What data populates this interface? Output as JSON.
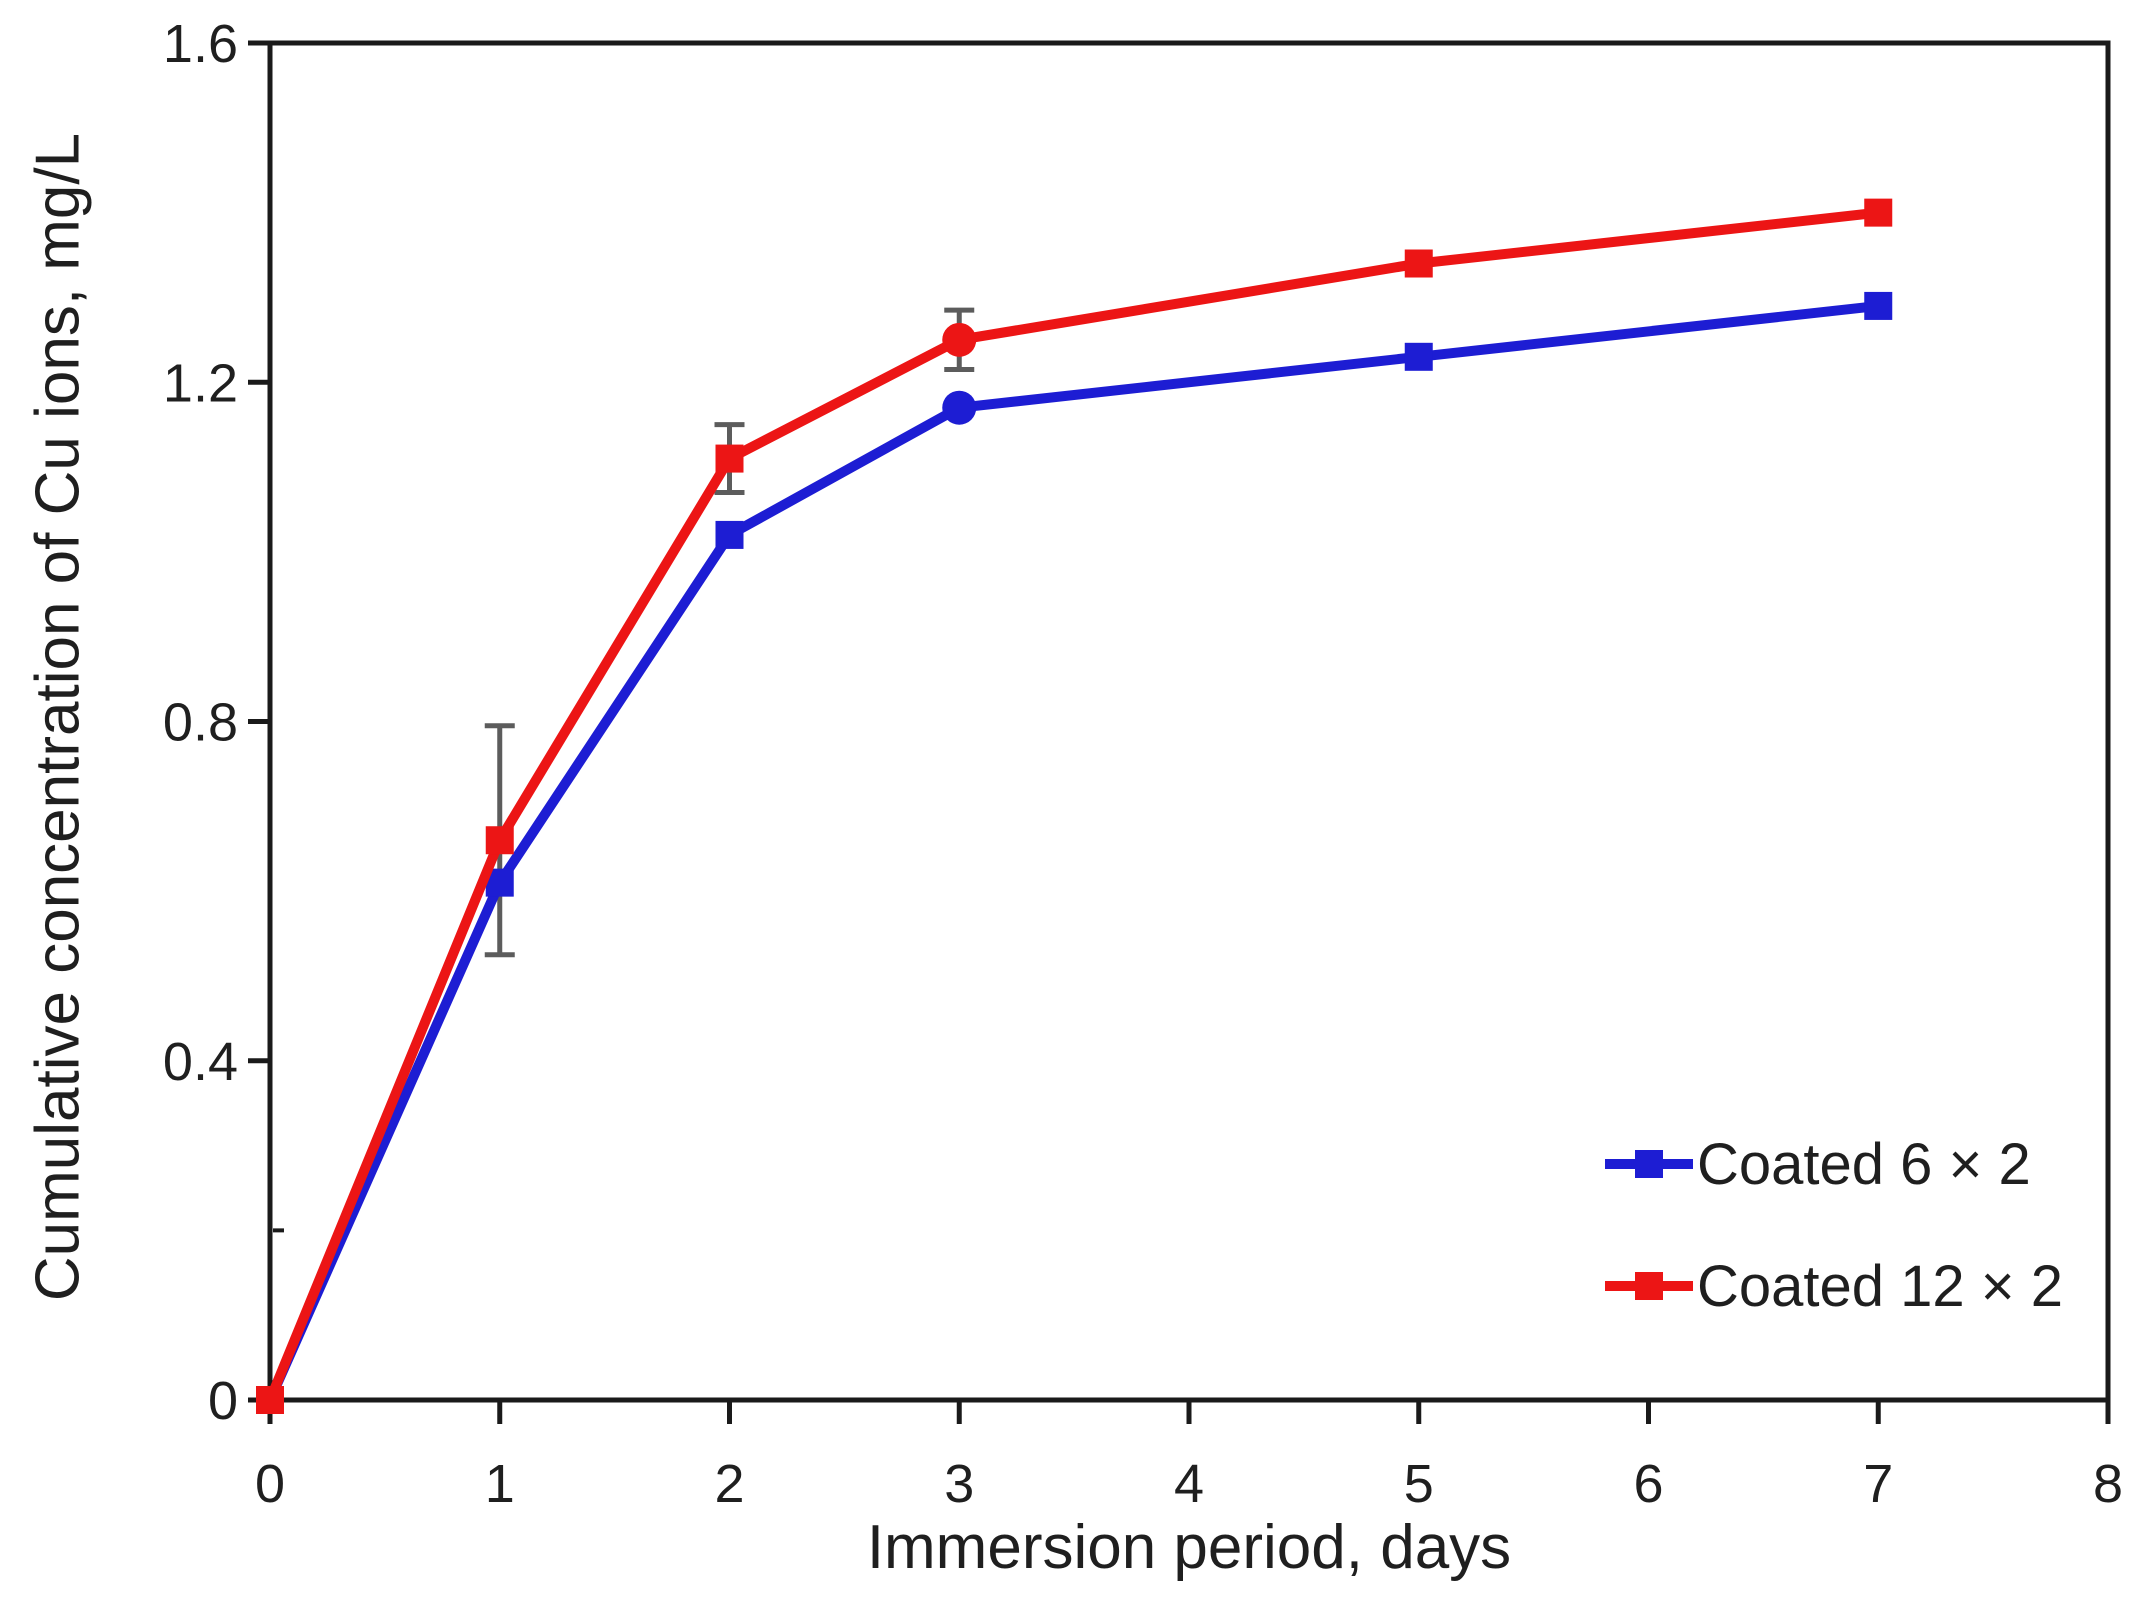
{
  "figure": {
    "background": "#ffffff",
    "axis_color": "#1a1a1a",
    "text_color": "#1f1f1f",
    "error_bar_color": "#5c5c5c"
  },
  "chart_data": {
    "type": "line",
    "title": "",
    "xlabel": "Immersion period, days",
    "ylabel": "Cumulative concentration of Cu ions, mg/L",
    "xlim": [
      0,
      8
    ],
    "ylim": [
      0,
      1.6
    ],
    "xticks": [
      "0",
      "1",
      "2",
      "3",
      "4",
      "5",
      "6",
      "7",
      "8"
    ],
    "xtick_values": [
      0,
      1,
      2,
      3,
      4,
      5,
      6,
      7,
      8
    ],
    "yticks": [
      "0",
      "0.4",
      "0.8",
      "1.2",
      "1.6"
    ],
    "ytick_values": [
      0,
      0.4,
      0.8,
      1.2,
      1.6
    ],
    "yticks_minor": [
      0.2
    ],
    "grid": false,
    "x": [
      0,
      1,
      2,
      3,
      5,
      7
    ],
    "series": [
      {
        "name": "Coated 6 × 2",
        "color": "#1d1dd3",
        "values": [
          0,
          0.61,
          1.02,
          1.17,
          1.23,
          1.29
        ],
        "errors": [
          0,
          0,
          0,
          0,
          0,
          0
        ],
        "marker_shapes": [
          "square",
          "square",
          "square",
          "circle",
          "square",
          "square"
        ]
      },
      {
        "name": "Coated 12 × 2",
        "color": "#ec1515",
        "values": [
          0,
          0.66,
          1.11,
          1.25,
          1.34,
          1.4
        ],
        "errors": [
          0,
          0.135,
          0.04,
          0.035,
          0,
          0
        ],
        "marker_shapes": [
          "square",
          "square",
          "square",
          "circle",
          "square",
          "square"
        ]
      }
    ],
    "legend": {
      "position": "lower right",
      "items": [
        "Coated 6 × 2",
        "Coated 12 × 2"
      ]
    }
  }
}
